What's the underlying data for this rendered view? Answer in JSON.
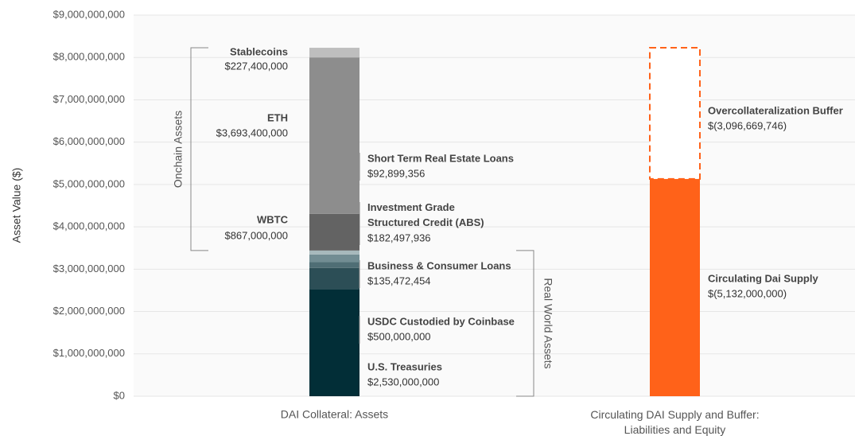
{
  "chart_data": {
    "type": "bar",
    "stacked": true,
    "y_label": "Asset Value ($)",
    "categories": [
      "DAI Collateral: Assets",
      "Circulating DAI Supply and Buffer:\nLiabilities and Equity"
    ],
    "ylim": [
      0,
      9000000000
    ],
    "yticks": [
      {
        "value": 0,
        "label": "$0"
      },
      {
        "value": 1000000000,
        "label": "$1,000,000,000"
      },
      {
        "value": 2000000000,
        "label": "$2,000,000,000"
      },
      {
        "value": 3000000000,
        "label": "$3,000,000,000"
      },
      {
        "value": 4000000000,
        "label": "$4,000,000,000"
      },
      {
        "value": 5000000000,
        "label": "$5,000,000,000"
      },
      {
        "value": 6000000000,
        "label": "$6,000,000,000"
      },
      {
        "value": 7000000000,
        "label": "$7,000,000,000"
      },
      {
        "value": 8000000000,
        "label": "$8,000,000,000"
      },
      {
        "value": 9000000000,
        "label": "$9,000,000,000"
      }
    ],
    "grid": true,
    "series": [
      {
        "name": "U.S. Treasuries",
        "color": "#022e37",
        "values": [
          2530000000,
          null
        ],
        "value_labels": [
          "$2,530,000,000",
          null
        ]
      },
      {
        "name": "USDC Custodied by Coinbase",
        "color": "#2c4e56",
        "values": [
          500000000,
          null
        ],
        "value_labels": [
          "$500,000,000",
          null
        ]
      },
      {
        "name": "Business & Consumer Loans",
        "color": "#4f6e75",
        "values": [
          135472454,
          null
        ],
        "value_labels": [
          "$135,472,454",
          null
        ]
      },
      {
        "name": "Investment Grade\nStructured Credit (ABS)",
        "color": "#728d93",
        "values": [
          182497936,
          null
        ],
        "value_labels": [
          "$182,497,936",
          null
        ]
      },
      {
        "name": "Short Term Real Estate Loans",
        "color": "#a7b9bc",
        "values": [
          92899356,
          null
        ],
        "value_labels": [
          "$92,899,356",
          null
        ]
      },
      {
        "name": "WBTC",
        "color": "#636363",
        "values": [
          867000000,
          null
        ],
        "value_labels": [
          "$867,000,000",
          null
        ]
      },
      {
        "name": "ETH",
        "color": "#8d8d8d",
        "values": [
          3693400000,
          null
        ],
        "value_labels": [
          "$3,693,400,000",
          null
        ]
      },
      {
        "name": "Stablecoins",
        "color": "#bebebe",
        "values": [
          227400000,
          null
        ],
        "value_labels": [
          "$227,400,000",
          null
        ]
      },
      {
        "name": "Circulating Dai Supply",
        "color": "#ff6219",
        "values": [
          null,
          5132000000
        ],
        "value_labels": [
          null,
          "$(5,132,000,000)"
        ]
      },
      {
        "name": "Overcollateralization Buffer",
        "color": "#ff6219",
        "style": "dashed",
        "values": [
          null,
          3096669746
        ],
        "value_labels": [
          null,
          "$(3,096,669,746)"
        ]
      }
    ],
    "groups": [
      "Real World Assets",
      "Onchain Assets"
    ]
  }
}
